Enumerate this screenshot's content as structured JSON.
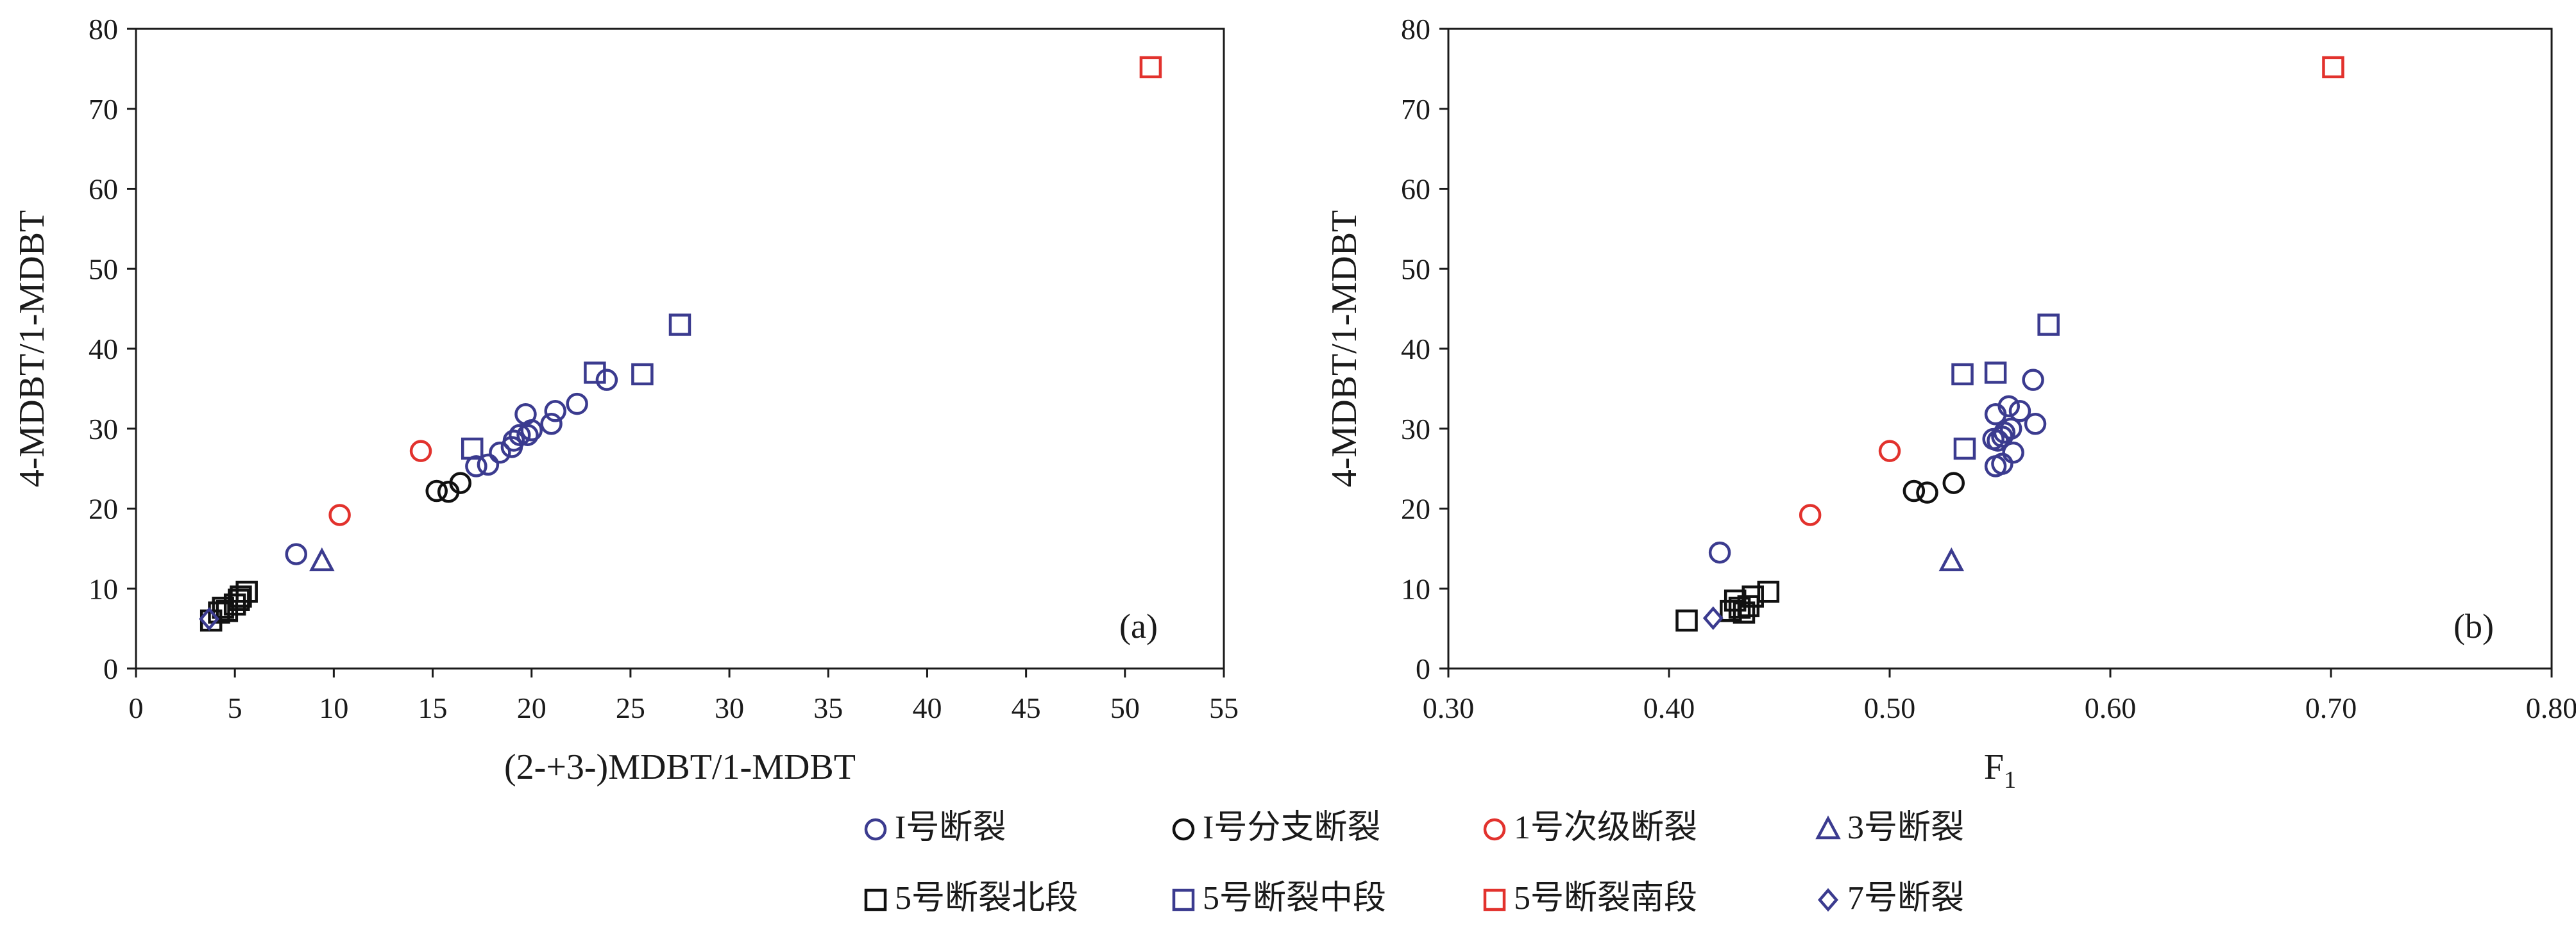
{
  "chart_data": [
    {
      "type": "scatter",
      "panel_label": "(a)",
      "xlabel": "(2-+3-)MDBT/1-MDBT",
      "ylabel": "4-MDBT/1-MDBT",
      "xlim": [
        0,
        55
      ],
      "ylim": [
        0,
        80
      ],
      "x_ticks": [
        "0",
        "5",
        "10",
        "15",
        "20",
        "25",
        "30",
        "35",
        "40",
        "45",
        "50",
        "55"
      ],
      "y_ticks": [
        "0",
        "10",
        "20",
        "30",
        "40",
        "50",
        "60",
        "70",
        "80"
      ],
      "grid": false,
      "series": [
        {
          "name": "I号断裂",
          "marker": "circle",
          "color": "#3b3b8f",
          "points": [
            [
              8.1,
              14.3
            ],
            [
              17.2,
              25.3
            ],
            [
              17.8,
              25.5
            ],
            [
              18.4,
              27.0
            ],
            [
              19.0,
              27.7
            ],
            [
              19.1,
              28.5
            ],
            [
              19.4,
              29.2
            ],
            [
              19.8,
              29.2
            ],
            [
              20.0,
              29.8
            ],
            [
              19.7,
              31.8
            ],
            [
              21.2,
              32.2
            ],
            [
              22.3,
              33.1
            ],
            [
              21.0,
              30.6
            ],
            [
              23.8,
              36.1
            ]
          ]
        },
        {
          "name": "I号分支断裂",
          "marker": "circle",
          "color": "#111111",
          "points": [
            [
              15.2,
              22.2
            ],
            [
              15.8,
              22.1
            ],
            [
              16.4,
              23.2
            ]
          ]
        },
        {
          "name": "1号次级断裂",
          "marker": "circle",
          "color": "#e2322d",
          "points": [
            [
              10.3,
              19.2
            ],
            [
              14.4,
              27.2
            ]
          ]
        },
        {
          "name": "3号断裂",
          "marker": "triangle",
          "color": "#3b3b8f",
          "points": [
            [
              9.4,
              13.4
            ]
          ]
        },
        {
          "name": "5号断裂北段",
          "marker": "square",
          "color": "#111111",
          "points": [
            [
              3.8,
              6.0
            ],
            [
              4.2,
              7.0
            ],
            [
              4.4,
              7.6
            ],
            [
              4.6,
              7.2
            ],
            [
              5.0,
              8.0
            ],
            [
              5.2,
              8.6
            ],
            [
              5.3,
              9.0
            ],
            [
              5.6,
              9.6
            ]
          ]
        },
        {
          "name": "5号断裂中段",
          "marker": "square",
          "color": "#3b3b8f",
          "points": [
            [
              17.0,
              27.5
            ],
            [
              23.2,
              37.0
            ],
            [
              25.6,
              36.8
            ],
            [
              27.5,
              43.0
            ]
          ]
        },
        {
          "name": "5号断裂南段",
          "marker": "square",
          "color": "#e2322d",
          "points": [
            [
              51.3,
              75.2
            ]
          ]
        },
        {
          "name": "7号断裂",
          "marker": "diamond",
          "color": "#3b3b8f",
          "points": [
            [
              3.7,
              6.2
            ]
          ]
        }
      ]
    },
    {
      "type": "scatter",
      "panel_label": "(b)",
      "xlabel": "F",
      "xlabel_sub": "1",
      "ylabel": "4-MDBT/1-MDBT",
      "xlim": [
        0.3,
        0.8
      ],
      "ylim": [
        0,
        80
      ],
      "x_ticks": [
        "0.30",
        "0.40",
        "0.50",
        "0.60",
        "0.70",
        "0.80"
      ],
      "y_ticks": [
        "0",
        "10",
        "20",
        "30",
        "40",
        "50",
        "60",
        "70",
        "80"
      ],
      "grid": false,
      "series": [
        {
          "name": "I号断裂",
          "marker": "circle",
          "color": "#3b3b8f",
          "points": [
            [
              0.423,
              14.5
            ],
            [
              0.548,
              25.3
            ],
            [
              0.551,
              25.6
            ],
            [
              0.556,
              27.0
            ],
            [
              0.549,
              28.5
            ],
            [
              0.551,
              29.0
            ],
            [
              0.552,
              29.5
            ],
            [
              0.555,
              30.0
            ],
            [
              0.548,
              31.8
            ],
            [
              0.554,
              32.8
            ],
            [
              0.559,
              32.2
            ],
            [
              0.566,
              30.6
            ],
            [
              0.565,
              36.1
            ],
            [
              0.547,
              28.7
            ]
          ]
        },
        {
          "name": "I号分支断裂",
          "marker": "circle",
          "color": "#111111",
          "points": [
            [
              0.511,
              22.2
            ],
            [
              0.517,
              22.0
            ],
            [
              0.529,
              23.2
            ]
          ]
        },
        {
          "name": "1号次级断裂",
          "marker": "circle",
          "color": "#e2322d",
          "points": [
            [
              0.464,
              19.2
            ],
            [
              0.5,
              27.2
            ]
          ]
        },
        {
          "name": "3号断裂",
          "marker": "triangle",
          "color": "#3b3b8f",
          "points": [
            [
              0.528,
              13.4
            ]
          ]
        },
        {
          "name": "5号断裂北段",
          "marker": "square",
          "color": "#111111",
          "points": [
            [
              0.408,
              6.0
            ],
            [
              0.428,
              7.2
            ],
            [
              0.432,
              7.6
            ],
            [
              0.436,
              7.8
            ],
            [
              0.43,
              8.5
            ],
            [
              0.438,
              9.0
            ],
            [
              0.445,
              9.6
            ],
            [
              0.434,
              7.0
            ]
          ]
        },
        {
          "name": "5号断裂中段",
          "marker": "square",
          "color": "#3b3b8f",
          "points": [
            [
              0.534,
              27.5
            ],
            [
              0.533,
              36.8
            ],
            [
              0.548,
              37.0
            ],
            [
              0.572,
              43.0
            ]
          ]
        },
        {
          "name": "5号断裂南段",
          "marker": "square",
          "color": "#e2322d",
          "points": [
            [
              0.701,
              75.2
            ]
          ]
        },
        {
          "name": "7号断裂",
          "marker": "diamond",
          "color": "#3b3b8f",
          "points": [
            [
              0.42,
              6.3
            ]
          ]
        }
      ]
    }
  ],
  "legend": {
    "placement": "bottom-center",
    "rows": [
      [
        {
          "label": "I号断裂",
          "marker": "circle",
          "color": "#3b3b8f"
        },
        {
          "label": "I号分支断裂",
          "marker": "circle",
          "color": "#111111"
        },
        {
          "label": "1号次级断裂",
          "marker": "circle",
          "color": "#e2322d"
        },
        {
          "label": "3号断裂",
          "marker": "triangle",
          "color": "#3b3b8f"
        }
      ],
      [
        {
          "label": "5号断裂北段",
          "marker": "square",
          "color": "#111111"
        },
        {
          "label": "5号断裂中段",
          "marker": "square",
          "color": "#3b3b8f"
        },
        {
          "label": "5号断裂南段",
          "marker": "square",
          "color": "#e2322d"
        },
        {
          "label": "7号断裂",
          "marker": "diamond",
          "color": "#3b3b8f"
        }
      ]
    ]
  }
}
